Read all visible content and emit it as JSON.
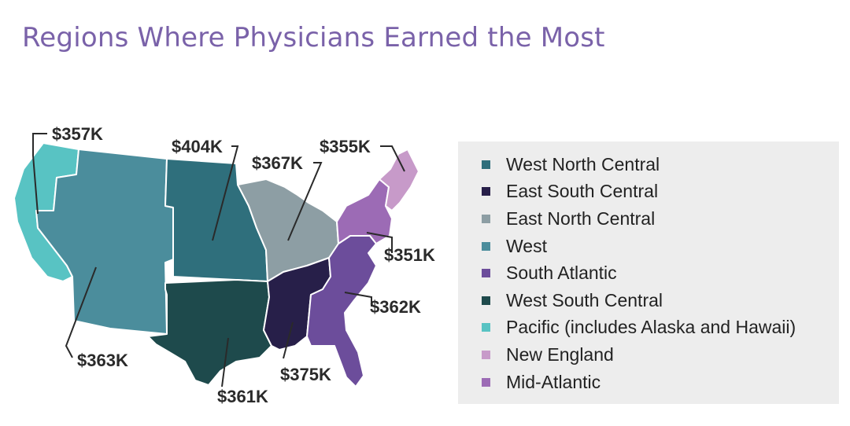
{
  "title": "Regions Where Physicians Earned the Most",
  "colors": {
    "title": "#7a62a9",
    "west_north_central": "#2f6f7c",
    "east_south_central": "#271f49",
    "east_north_central": "#8d9ea4",
    "west": "#4b8d9c",
    "south_atlantic": "#6c4d9b",
    "west_south_central": "#1e4a4c",
    "pacific": "#58c3c3",
    "new_england": "#c79ac9",
    "mid_atlantic": "#9c6bb5"
  },
  "callouts": [
    {
      "region": "Pacific",
      "value": "$357K"
    },
    {
      "region": "West North Central",
      "value": "$404K"
    },
    {
      "region": "East North Central",
      "value": "$367K"
    },
    {
      "region": "New England",
      "value": "$355K"
    },
    {
      "region": "Mid-Atlantic",
      "value": "$351K"
    },
    {
      "region": "South Atlantic",
      "value": "$362K"
    },
    {
      "region": "West",
      "value": "$363K"
    },
    {
      "region": "East South Central",
      "value": "$375K"
    },
    {
      "region": "West South Central",
      "value": "$361K"
    }
  ],
  "legend": [
    {
      "label": "West North Central",
      "color": "#2f6f7c"
    },
    {
      "label": "East South Central",
      "color": "#271f49"
    },
    {
      "label": "East North Central",
      "color": "#8d9ea4"
    },
    {
      "label": "West",
      "color": "#4b8d9c"
    },
    {
      "label": "South Atlantic",
      "color": "#6c4d9b"
    },
    {
      "label": "West South Central",
      "color": "#1e4a4c"
    },
    {
      "label": "Pacific (includes Alaska and Hawaii)",
      "color": "#58c3c3"
    },
    {
      "label": "New England",
      "color": "#c79ac9"
    },
    {
      "label": "Mid-Atlantic",
      "color": "#9c6bb5"
    }
  ]
}
